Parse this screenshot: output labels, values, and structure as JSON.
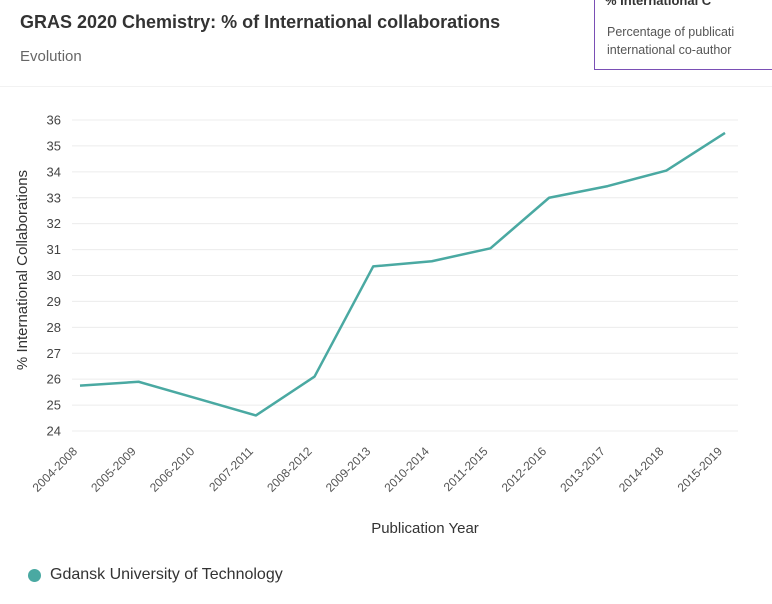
{
  "header": {
    "title": "GRAS 2020 Chemistry: % of International collaborations",
    "subtitle": "Evolution"
  },
  "tooltip": {
    "title_fragment": "% International C",
    "line1": "Percentage of publicati",
    "line2": "international co-author"
  },
  "colors": {
    "series": "#4aa9a2",
    "grid": "#ececec",
    "tooltip_border": "#7a4fb5"
  },
  "chart_data": {
    "type": "line",
    "title": "",
    "xlabel": "Publication Year",
    "ylabel": "% International Collaborations",
    "ylim": [
      24,
      36
    ],
    "yticks": [
      24,
      25,
      26,
      27,
      28,
      29,
      30,
      31,
      32,
      33,
      34,
      35,
      36
    ],
    "grid": true,
    "legend_placement": "bottom-left",
    "categories": [
      "2004-2008",
      "2005-2009",
      "2006-2010",
      "2007-2011",
      "2008-2012",
      "2009-2013",
      "2010-2014",
      "2011-2015",
      "2012-2016",
      "2013-2017",
      "2014-2018",
      "2015-2019"
    ],
    "series": [
      {
        "name": "Gdansk University of Technology",
        "values": [
          25.75,
          25.9,
          25.25,
          24.6,
          26.1,
          30.35,
          30.55,
          31.05,
          33.0,
          33.45,
          34.05,
          35.5
        ]
      }
    ]
  }
}
